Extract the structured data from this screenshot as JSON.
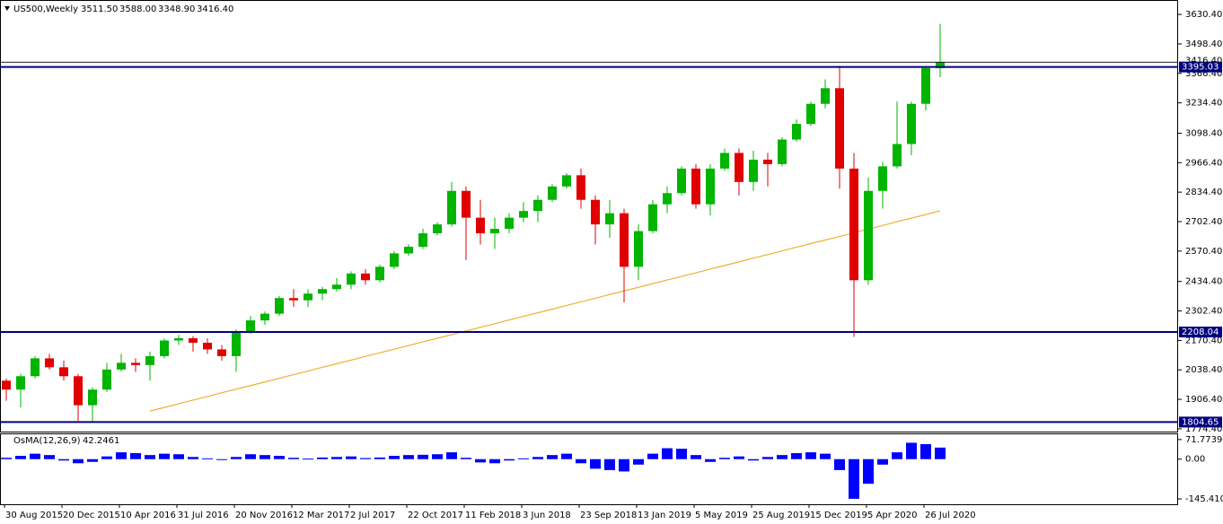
{
  "chart_data": [
    {
      "type": "candlestick",
      "title": "US500,Weekly",
      "quote": [
        {
          "value": 3511.5,
          "label": "3511.50"
        },
        {
          "value": 3588,
          "label": "3588.00"
        },
        {
          "value": 3348.9,
          "label": "3348.90"
        },
        {
          "value": 3416.4,
          "label": "3416.40"
        }
      ],
      "categories": [
        "30 Aug 2015",
        null,
        null,
        null,
        "20 Dec 2015",
        null,
        null,
        null,
        "10 Apr 2016",
        null,
        null,
        null,
        "31 Jul 2016",
        null,
        null,
        null,
        "20 Nov 2016",
        null,
        null,
        null,
        "12 Mar 2017",
        null,
        null,
        null,
        "2 Jul 2017",
        null,
        null,
        null,
        "22 Oct 2017",
        null,
        null,
        null,
        "11 Feb 2018",
        null,
        null,
        null,
        "3 Jun 2018",
        null,
        null,
        null,
        "23 Sep 2018",
        null,
        null,
        null,
        "13 Jan 2019",
        null,
        null,
        null,
        "5 May 2019",
        null,
        null,
        null,
        "25 Aug 2019",
        null,
        null,
        null,
        "15 Dec 2019",
        null,
        null,
        null,
        "5 Apr 2020",
        null,
        null,
        null,
        "26 Jul 2020",
        null
      ],
      "open": [
        1990,
        1950,
        2010,
        2090,
        2050,
        2010,
        1880,
        1950,
        2040,
        2070,
        2060,
        2100,
        2170,
        2180,
        2160,
        2130,
        2100,
        2210,
        2260,
        2290,
        2360,
        2350,
        2380,
        2400,
        2420,
        2470,
        2440,
        2500,
        2560,
        2590,
        2650,
        2690,
        2840,
        2720,
        2650,
        2670,
        2720,
        2750,
        2800,
        2860,
        2910,
        2800,
        2690,
        2740,
        2500,
        2660,
        2780,
        2830,
        2940,
        2780,
        2940,
        3010,
        2880,
        2980,
        2960,
        3070,
        3140,
        3230,
        3300,
        2940,
        2440,
        2840,
        2950,
        3050,
        3230,
        3390
      ],
      "high": [
        2000,
        2020,
        2100,
        2110,
        2080,
        2020,
        1960,
        2070,
        2110,
        2090,
        2120,
        2180,
        2195,
        2190,
        2180,
        2150,
        2220,
        2280,
        2300,
        2370,
        2400,
        2400,
        2410,
        2450,
        2480,
        2490,
        2510,
        2570,
        2600,
        2670,
        2700,
        2880,
        2860,
        2800,
        2720,
        2740,
        2790,
        2820,
        2870,
        2920,
        2940,
        2820,
        2800,
        2760,
        2690,
        2800,
        2860,
        2950,
        2960,
        2960,
        3030,
        3030,
        3020,
        3010,
        3080,
        3160,
        3240,
        3340,
        3400,
        3010,
        2900,
        2970,
        3240,
        3240,
        3400,
        3588
      ],
      "low": [
        1900,
        1870,
        2000,
        2040,
        1990,
        1810,
        1805,
        1940,
        2030,
        2030,
        1990,
        2090,
        2150,
        2120,
        2110,
        2080,
        2030,
        2200,
        2240,
        2280,
        2320,
        2320,
        2350,
        2390,
        2400,
        2420,
        2430,
        2490,
        2550,
        2580,
        2640,
        2680,
        2530,
        2600,
        2580,
        2650,
        2700,
        2700,
        2790,
        2850,
        2760,
        2600,
        2630,
        2340,
        2440,
        2650,
        2740,
        2820,
        2760,
        2730,
        2930,
        2820,
        2840,
        2860,
        2950,
        3060,
        3130,
        3210,
        2850,
        2186,
        2420,
        2760,
        2940,
        3000,
        3200,
        3348.9
      ],
      "close": [
        1950,
        2010,
        2090,
        2050,
        2010,
        1880,
        1950,
        2040,
        2070,
        2060,
        2100,
        2170,
        2180,
        2160,
        2130,
        2100,
        2210,
        2260,
        2290,
        2360,
        2350,
        2380,
        2400,
        2420,
        2470,
        2440,
        2500,
        2560,
        2590,
        2650,
        2690,
        2840,
        2720,
        2650,
        2670,
        2720,
        2750,
        2800,
        2860,
        2910,
        2800,
        2690,
        2740,
        2500,
        2660,
        2780,
        2830,
        2940,
        2780,
        2940,
        3010,
        2880,
        2980,
        2960,
        3070,
        3140,
        3230,
        3300,
        2940,
        2440,
        2840,
        2950,
        3050,
        3230,
        3390,
        3416.4
      ],
      "bull_color": "#00b400",
      "bear_color": "#e00000",
      "ma": {
        "color": "#f0b030",
        "values": [
          null,
          null,
          null,
          null,
          null,
          null,
          null,
          null,
          null,
          null,
          1854,
          1870,
          1887,
          1903,
          1919,
          1936,
          1952,
          1968,
          1984,
          2001,
          2017,
          2033,
          2050,
          2066,
          2082,
          2099,
          2115,
          2131,
          2147,
          2164,
          2180,
          2196,
          2213,
          2229,
          2245,
          2262,
          2278,
          2294,
          2310,
          2327,
          2343,
          2359,
          2376,
          2392,
          2408,
          2425,
          2441,
          2457,
          2473,
          2490,
          2506,
          2522,
          2539,
          2555,
          2571,
          2588,
          2604,
          2620,
          2636,
          2653,
          2669,
          2685,
          2702,
          2718,
          2734,
          2751
        ]
      },
      "levels": [
        {
          "value": 3395.03,
          "label": "3395.03"
        },
        {
          "value": 2208.04,
          "label": "2208.04"
        },
        {
          "value": 1804.65,
          "label": "1804.65"
        }
      ],
      "level_color": "#000080",
      "price_line": {
        "value": 3416.4,
        "label": "3416.40"
      },
      "ylim": [
        1762,
        3687
      ],
      "yticks": [
        {
          "value": 3630.4,
          "label": "3630.40"
        },
        {
          "value": 3498.4,
          "label": "3498.40"
        },
        {
          "value": 3366.4,
          "label": "3366.40"
        },
        {
          "value": 3234.4,
          "label": "3234.40"
        },
        {
          "value": 3098.4,
          "label": "3098.40"
        },
        {
          "value": 2966.4,
          "label": "2966.40"
        },
        {
          "value": 2834.4,
          "label": "2834.40"
        },
        {
          "value": 2702.4,
          "label": "2702.40"
        },
        {
          "value": 2570.4,
          "label": "2570.40"
        },
        {
          "value": 2434.4,
          "label": "2434.40"
        },
        {
          "value": 2302.4,
          "label": "2302.40"
        },
        {
          "value": 2170.4,
          "label": "2170.40"
        },
        {
          "value": 2038.4,
          "label": "2038.40"
        },
        {
          "value": 1906.4,
          "label": "1906.40"
        },
        {
          "value": 1774.4,
          "label": "1774.40"
        }
      ]
    },
    {
      "type": "bar",
      "title": "OsMA(12,26,9)",
      "last_value": 42.2461,
      "color": "#0000ff",
      "values": [
        5,
        12,
        20,
        15,
        -5,
        -15,
        -10,
        10,
        25,
        22,
        15,
        20,
        18,
        8,
        3,
        -3,
        8,
        18,
        15,
        12,
        5,
        2,
        6,
        8,
        10,
        4,
        6,
        12,
        15,
        16,
        18,
        25,
        5,
        -12,
        -15,
        -5,
        3,
        8,
        15,
        20,
        -15,
        -35,
        -40,
        -45,
        -20,
        20,
        40,
        38,
        15,
        -10,
        5,
        10,
        -5,
        8,
        15,
        22,
        25,
        20,
        -40,
        -145,
        -90,
        -20,
        25,
        60,
        55,
        42.2461
      ],
      "ylim": [
        -165,
        91
      ],
      "yticks": [
        71.7739,
        {
          "value": 0,
          "label": "0.00"
        },
        -145.4109
      ]
    }
  ]
}
